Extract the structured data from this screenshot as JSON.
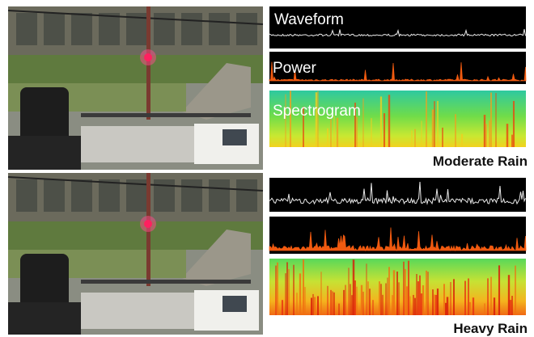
{
  "panels": [
    {
      "label": "Moderate Rain",
      "tracks": [
        "Waveform",
        "Power",
        "Spectrogram"
      ]
    },
    {
      "label": "Heavy Rain"
    }
  ]
}
